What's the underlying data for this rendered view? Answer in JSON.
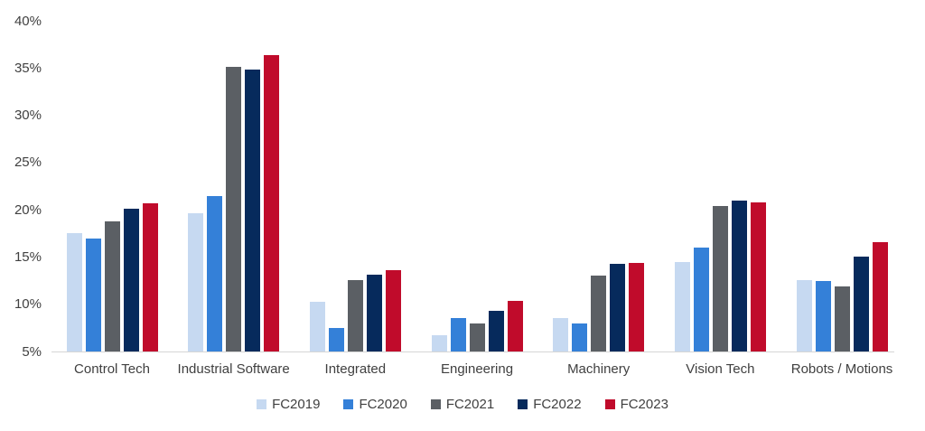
{
  "chart_data": {
    "type": "bar",
    "title": "",
    "xlabel": "",
    "ylabel": "",
    "categories": [
      "Control Tech",
      "Industrial Software",
      "Integrated",
      "Engineering",
      "Machinery",
      "Vision Tech",
      "Robots / Motions"
    ],
    "series": [
      {
        "name": "FC2019",
        "color": "#c6d9f1",
        "values": [
          17.5,
          19.6,
          10.3,
          6.7,
          8.5,
          14.5,
          12.6
        ]
      },
      {
        "name": "FC2020",
        "color": "#3480d8",
        "values": [
          17.0,
          21.5,
          7.5,
          8.5,
          8.0,
          16.0,
          12.5
        ]
      },
      {
        "name": "FC2021",
        "color": "#5b5f64",
        "values": [
          18.8,
          35.1,
          12.6,
          8.0,
          13.0,
          20.4,
          11.9
        ]
      },
      {
        "name": "FC2022",
        "color": "#062a5c",
        "values": [
          20.1,
          34.8,
          13.1,
          9.3,
          14.3,
          21.0,
          15.0
        ]
      },
      {
        "name": "FC2023",
        "color": "#c00b2b",
        "values": [
          20.7,
          36.4,
          13.6,
          10.4,
          14.4,
          20.8,
          16.6
        ]
      }
    ],
    "ylim": [
      5,
      40
    ],
    "y_ticks": [
      "40%",
      "35%",
      "30%",
      "25%",
      "20%",
      "15%",
      "10%",
      "5%"
    ],
    "grid": false,
    "legend_position": "bottom",
    "axis_line_color": "#d6d6d6",
    "text_color": "#404040",
    "background": "#ffffff"
  }
}
